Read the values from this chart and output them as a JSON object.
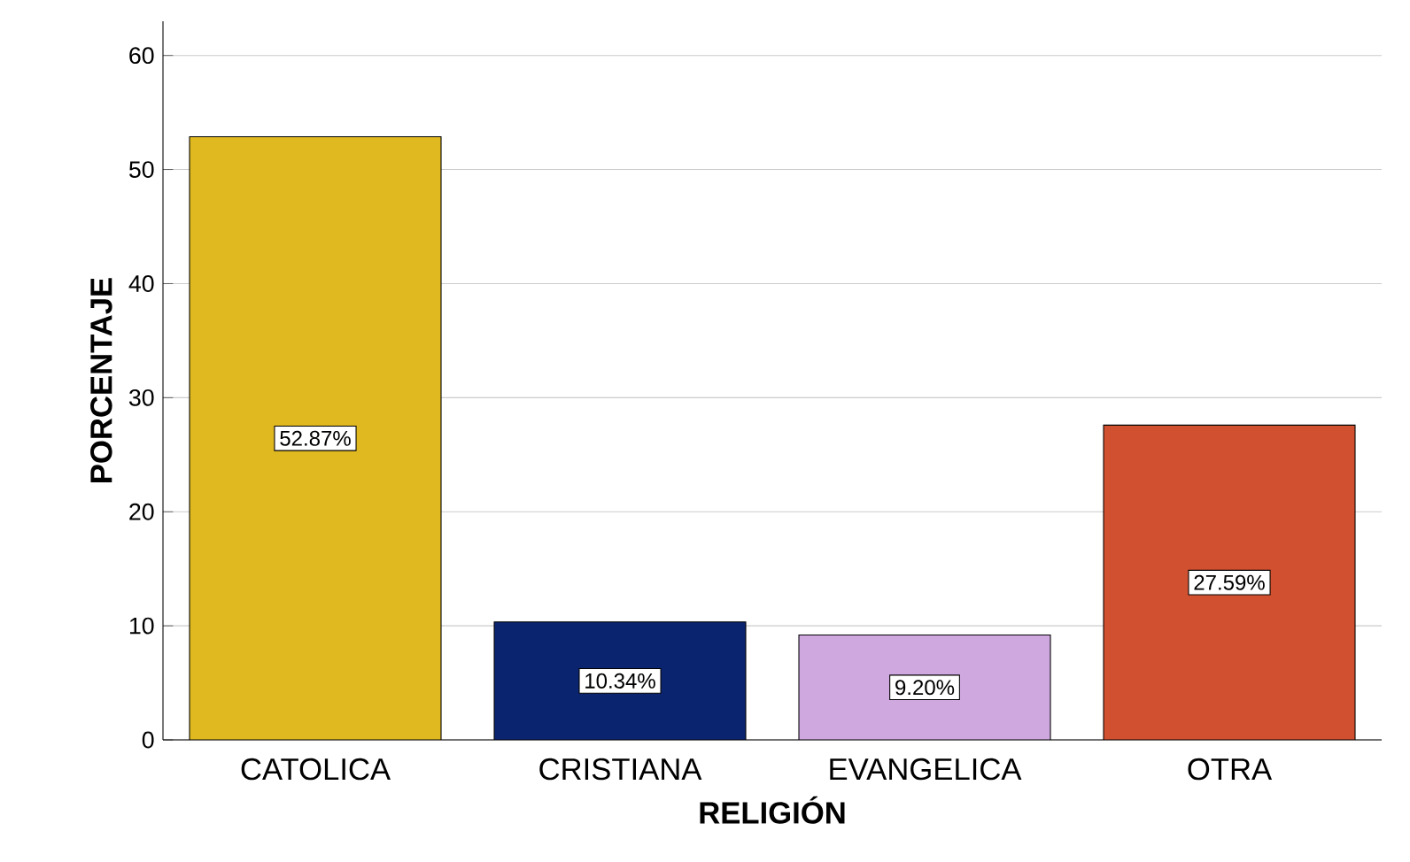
{
  "chart_data": {
    "type": "bar",
    "xlabel": "RELIGIÓN",
    "ylabel": "PORCENTAJE",
    "categories": [
      "CATOLICA",
      "CRISTIANA",
      "EVANGELICA",
      "OTRA"
    ],
    "values": [
      52.87,
      10.34,
      9.2,
      27.59
    ],
    "colors": [
      "#e0b820",
      "#0a2470",
      "#d0a8e0",
      "#d05030"
    ],
    "value_labels": [
      "52.87%",
      "10.34%",
      "9.20%",
      "27.59%"
    ],
    "ylim": [
      0,
      63
    ],
    "yticks": [
      0,
      10,
      20,
      30,
      40,
      50,
      60
    ],
    "grid": "y"
  }
}
